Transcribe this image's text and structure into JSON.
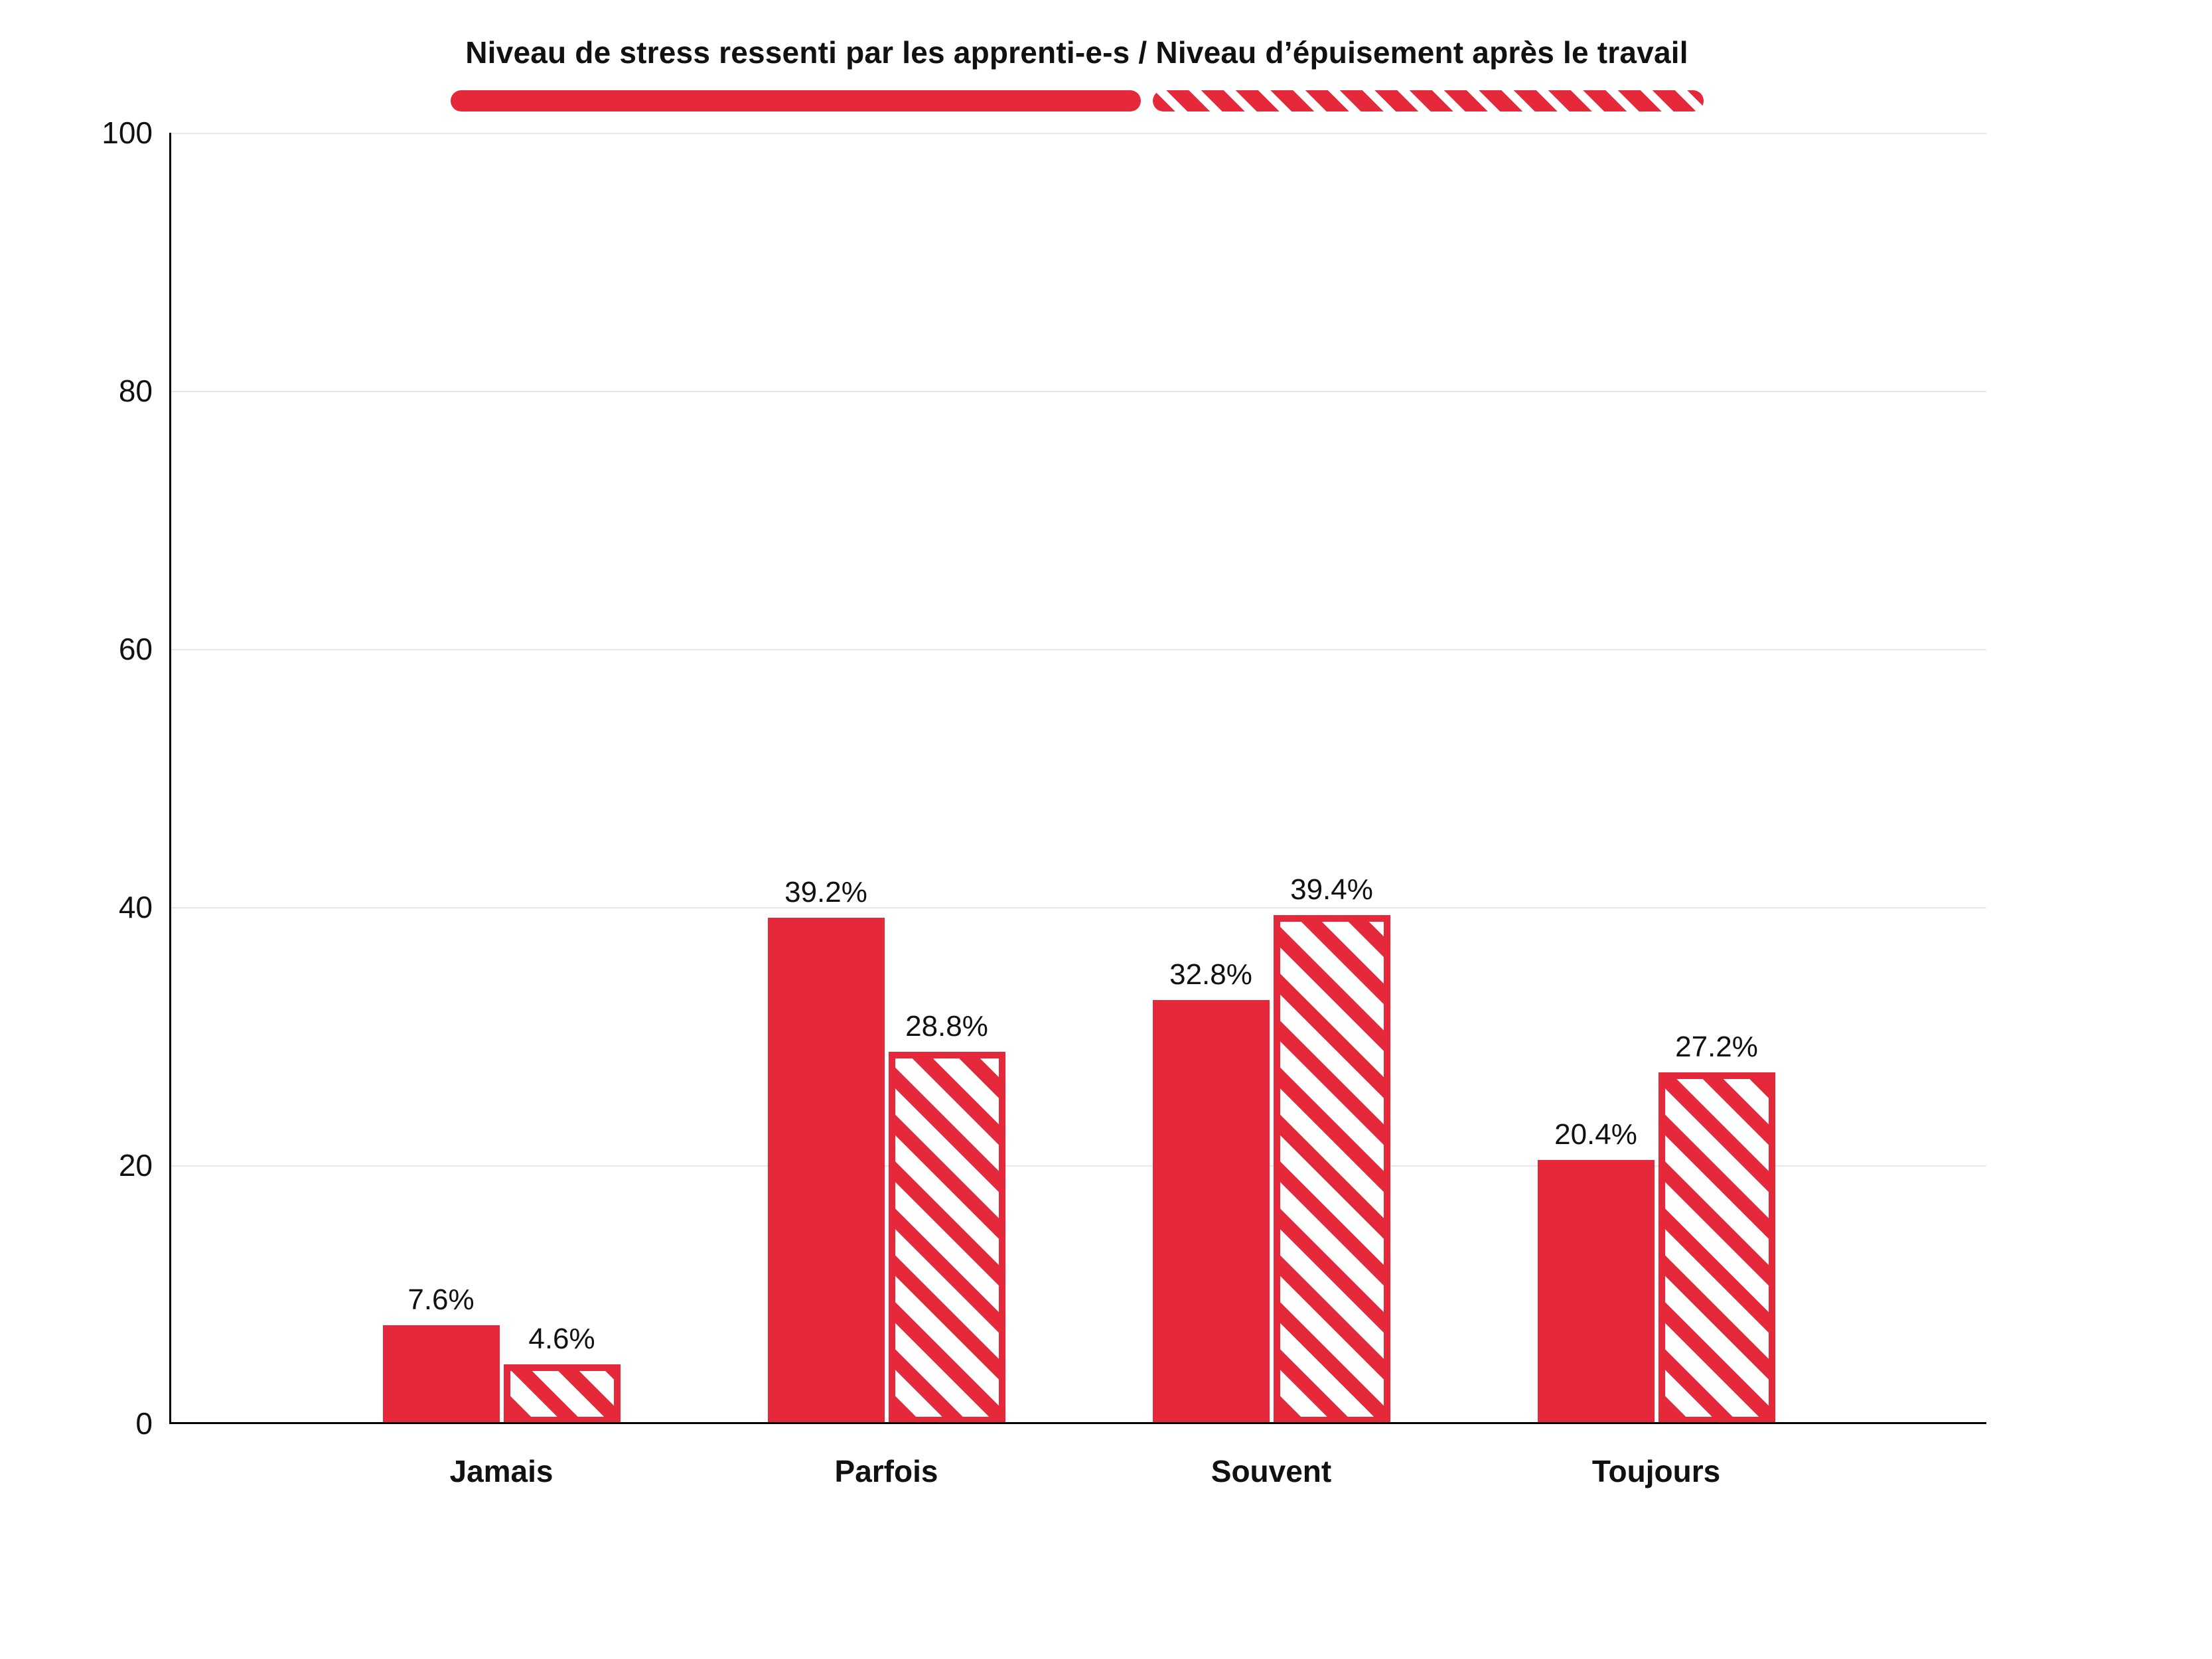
{
  "chart_data": {
    "type": "bar",
    "title": "Niveau de stress ressenti par les apprenti-e-s / Niveau d’épuisement après le travail",
    "categories": [
      "Jamais",
      "Parfois",
      "Souvent",
      "Toujours"
    ],
    "series": [
      {
        "name": "Niveau de stress ressenti par les apprenti-e-s",
        "style": "solid",
        "values": [
          7.6,
          39.2,
          32.8,
          20.4
        ],
        "labels": [
          "7.6%",
          "39.2%",
          "32.8%",
          "20.4%"
        ]
      },
      {
        "name": "Niveau d’épuisement après le travail",
        "style": "hatched",
        "values": [
          4.6,
          28.8,
          39.4,
          27.2
        ],
        "labels": [
          "4.6%",
          "28.8%",
          "39.4%",
          "27.2%"
        ]
      }
    ],
    "xlabel": "",
    "ylabel": "",
    "ylim": [
      0,
      100
    ],
    "yticks": [
      0,
      20,
      40,
      60,
      80,
      100
    ],
    "grid": true,
    "legend_position": "top",
    "accent_color": "#e5293b",
    "grid_color": "#e8e8e8"
  }
}
